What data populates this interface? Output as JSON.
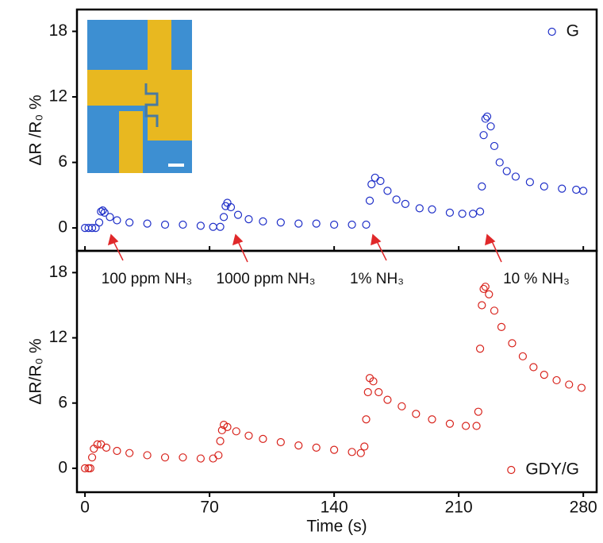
{
  "chart_data": [
    {
      "type": "scatter",
      "y_label": "ΔR /R₀ %",
      "xlim": [
        -4.5,
        287.5
      ],
      "ylim": [
        -2.1,
        20
      ],
      "xticks": [
        0,
        70,
        140,
        210,
        280
      ],
      "yticks": [
        0,
        6,
        12,
        18
      ],
      "legend": "upper right",
      "annotations": [
        "100 ppm NH₃",
        "1000 ppm NH₃",
        "1% NH₃",
        "10 % NH₃"
      ],
      "series": [
        {
          "name": "G",
          "color": "#1f2fc8",
          "x": [
            0,
            2,
            4,
            6,
            8,
            9,
            10,
            11,
            14,
            18,
            25,
            35,
            45,
            55,
            65,
            72,
            76,
            78,
            79,
            80,
            82,
            86,
            92,
            100,
            110,
            120,
            130,
            140,
            150,
            158,
            160,
            161,
            163,
            166,
            170,
            175,
            180,
            188,
            195,
            205,
            212,
            218,
            222,
            223,
            224,
            225,
            226,
            228,
            230,
            233,
            237,
            242,
            250,
            258,
            268,
            276,
            280
          ],
          "values": [
            0,
            0,
            0,
            0,
            0.5,
            1.5,
            1.6,
            1.4,
            1.0,
            0.7,
            0.5,
            0.4,
            0.3,
            0.3,
            0.2,
            0.1,
            0.1,
            1.0,
            2.0,
            2.3,
            1.9,
            1.2,
            0.8,
            0.6,
            0.5,
            0.4,
            0.4,
            0.3,
            0.3,
            0.3,
            2.5,
            4.0,
            4.6,
            4.3,
            3.4,
            2.6,
            2.2,
            1.8,
            1.7,
            1.4,
            1.3,
            1.3,
            1.5,
            3.8,
            8.5,
            10.0,
            10.2,
            9.3,
            7.5,
            6.0,
            5.2,
            4.7,
            4.2,
            3.8,
            3.6,
            3.5,
            3.4
          ]
        }
      ]
    },
    {
      "type": "scatter",
      "x_label": "Time (s)",
      "y_label": "ΔR/R₀ %",
      "xlim": [
        -4.5,
        287.5
      ],
      "ylim": [
        -2.2,
        20
      ],
      "xticks": [
        0,
        70,
        140,
        210,
        280
      ],
      "yticks": [
        0,
        6,
        12,
        18
      ],
      "legend": "lower right",
      "series": [
        {
          "name": "GDY/G",
          "color": "#d8231c",
          "x": [
            0,
            2,
            3,
            4,
            5,
            7,
            9,
            12,
            18,
            25,
            35,
            45,
            55,
            65,
            72,
            75,
            76,
            77,
            78,
            80,
            85,
            92,
            100,
            110,
            120,
            130,
            140,
            150,
            155,
            157,
            158,
            159,
            160,
            162,
            165,
            170,
            178,
            186,
            195,
            205,
            214,
            220,
            221,
            222,
            223,
            224,
            225,
            227,
            230,
            234,
            240,
            246,
            252,
            258,
            265,
            272,
            279
          ],
          "values": [
            0,
            0,
            0,
            1.0,
            1.8,
            2.2,
            2.2,
            1.9,
            1.6,
            1.4,
            1.2,
            1.0,
            1.0,
            0.9,
            0.9,
            1.2,
            2.5,
            3.5,
            4.0,
            3.8,
            3.4,
            3.0,
            2.7,
            2.4,
            2.1,
            1.9,
            1.7,
            1.5,
            1.4,
            2.0,
            4.5,
            7.0,
            8.3,
            8.0,
            7.0,
            6.3,
            5.7,
            5.0,
            4.5,
            4.1,
            3.9,
            3.9,
            5.2,
            11.0,
            15.0,
            16.5,
            16.7,
            16.0,
            14.5,
            13.0,
            11.5,
            10.3,
            9.3,
            8.6,
            8.1,
            7.7,
            7.4
          ]
        }
      ]
    }
  ]
}
